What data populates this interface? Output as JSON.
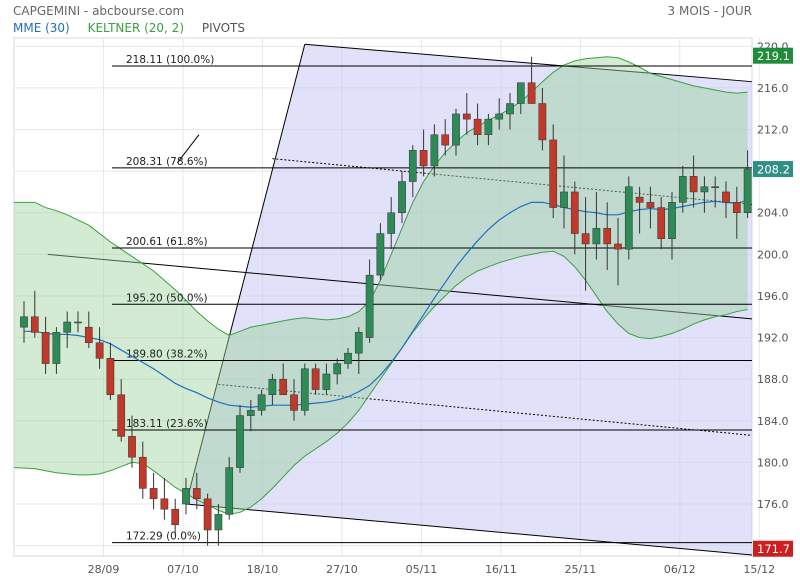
{
  "header": {
    "title": "CAPGEMINI - abcbourse.com",
    "period": "3 MOIS - JOUR"
  },
  "legend": [
    {
      "label": "MME (30)",
      "color": "#1e6fc0"
    },
    {
      "label": "KELTNER (20, 2)",
      "color": "#3aa040"
    },
    {
      "label": "PIVOTS",
      "color": "#555555"
    }
  ],
  "chart_data": {
    "type": "candlestick",
    "ylim": [
      171,
      220.8
    ],
    "y_ticks": [
      "220.0",
      "216.0",
      "212.0",
      "208.0",
      "204.0",
      "200.0",
      "196.0",
      "192.0",
      "188.0",
      "184.0",
      "180.0",
      "176.0",
      "172.0"
    ],
    "x_ticks": [
      "28/09",
      "07/10",
      "18/10",
      "27/10",
      "05/11",
      "16/11",
      "25/11",
      "06/12",
      "15/12"
    ],
    "x_tick_index": [
      4,
      8,
      12,
      16,
      20,
      24,
      28,
      33,
      37
    ],
    "fib_levels": [
      {
        "label": "218.11 (100.0%)",
        "value": 218.11
      },
      {
        "label": "208.31 (78.6%)",
        "value": 208.31
      },
      {
        "label": "200.61 (61.8%)",
        "value": 200.61
      },
      {
        "label": "195.20 (50.0%)",
        "value": 195.2
      },
      {
        "label": "189.80 (38.2%)",
        "value": 189.8
      },
      {
        "label": "183.11 (23.6%)",
        "value": 183.11
      },
      {
        "label": "172.29 (0.0%)",
        "value": 172.29
      }
    ],
    "price_badges": [
      {
        "label": "219.1",
        "value": 219.1,
        "color": "#1e8c3a"
      },
      {
        "label": "208.2",
        "value": 208.2,
        "color": "#2f8f86"
      },
      {
        "label": "171.7",
        "value": 171.7,
        "color": "#cc1f1f"
      }
    ],
    "candles": [
      {
        "o": 193.0,
        "h": 195.5,
        "l": 191.5,
        "c": 194.0
      },
      {
        "o": 194.0,
        "h": 196.5,
        "l": 192.0,
        "c": 192.5
      },
      {
        "o": 192.5,
        "h": 194.0,
        "l": 188.5,
        "c": 189.5
      },
      {
        "o": 189.5,
        "h": 193.0,
        "l": 188.5,
        "c": 192.5
      },
      {
        "o": 192.5,
        "h": 194.5,
        "l": 191.0,
        "c": 193.5
      },
      {
        "o": 193.5,
        "h": 194.5,
        "l": 192.5,
        "c": 193.5
      },
      {
        "o": 193.0,
        "h": 194.5,
        "l": 191.0,
        "c": 191.5
      },
      {
        "o": 191.5,
        "h": 193.0,
        "l": 189.0,
        "c": 190.0
      },
      {
        "o": 190.0,
        "h": 191.5,
        "l": 186.0,
        "c": 186.5
      },
      {
        "o": 186.5,
        "h": 188.0,
        "l": 182.0,
        "c": 182.5
      },
      {
        "o": 182.5,
        "h": 184.5,
        "l": 179.5,
        "c": 180.5
      },
      {
        "o": 180.5,
        "h": 182.0,
        "l": 176.5,
        "c": 177.5
      },
      {
        "o": 177.5,
        "h": 179.0,
        "l": 175.5,
        "c": 176.5
      },
      {
        "o": 176.5,
        "h": 178.5,
        "l": 174.5,
        "c": 175.5
      },
      {
        "o": 175.5,
        "h": 176.5,
        "l": 173.0,
        "c": 174.0
      },
      {
        "o": 176.0,
        "h": 178.5,
        "l": 175.0,
        "c": 177.5
      },
      {
        "o": 177.5,
        "h": 179.0,
        "l": 175.5,
        "c": 176.5
      },
      {
        "o": 176.5,
        "h": 177.0,
        "l": 172.0,
        "c": 173.5
      },
      {
        "o": 173.5,
        "h": 176.0,
        "l": 172.0,
        "c": 175.0
      },
      {
        "o": 175.0,
        "h": 180.5,
        "l": 174.5,
        "c": 179.5
      },
      {
        "o": 179.5,
        "h": 185.5,
        "l": 179.0,
        "c": 184.5
      },
      {
        "o": 184.5,
        "h": 186.0,
        "l": 183.0,
        "c": 185.0
      },
      {
        "o": 185.0,
        "h": 187.0,
        "l": 184.5,
        "c": 186.5
      },
      {
        "o": 186.5,
        "h": 188.5,
        "l": 185.5,
        "c": 188.0
      },
      {
        "o": 188.0,
        "h": 189.5,
        "l": 186.5,
        "c": 186.5
      },
      {
        "o": 186.5,
        "h": 188.0,
        "l": 184.0,
        "c": 185.0
      },
      {
        "o": 185.0,
        "h": 189.5,
        "l": 184.5,
        "c": 189.0
      },
      {
        "o": 189.0,
        "h": 189.5,
        "l": 186.5,
        "c": 187.0
      },
      {
        "o": 187.0,
        "h": 189.5,
        "l": 186.5,
        "c": 188.5
      },
      {
        "o": 188.5,
        "h": 190.0,
        "l": 187.5,
        "c": 189.5
      },
      {
        "o": 189.5,
        "h": 191.0,
        "l": 189.0,
        "c": 190.5
      },
      {
        "o": 190.5,
        "h": 193.0,
        "l": 188.5,
        "c": 192.5
      },
      {
        "o": 192.0,
        "h": 199.5,
        "l": 191.5,
        "c": 198.0
      },
      {
        "o": 198.0,
        "h": 203.0,
        "l": 197.5,
        "c": 202.0
      },
      {
        "o": 202.0,
        "h": 205.5,
        "l": 200.5,
        "c": 204.0
      },
      {
        "o": 204.0,
        "h": 208.0,
        "l": 203.0,
        "c": 207.0
      },
      {
        "o": 207.0,
        "h": 210.5,
        "l": 205.5,
        "c": 210.0
      },
      {
        "o": 210.0,
        "h": 212.0,
        "l": 207.5,
        "c": 208.5
      },
      {
        "o": 208.5,
        "h": 212.5,
        "l": 207.5,
        "c": 211.5
      },
      {
        "o": 211.5,
        "h": 213.0,
        "l": 209.5,
        "c": 210.5
      },
      {
        "o": 210.5,
        "h": 214.0,
        "l": 209.5,
        "c": 213.5
      },
      {
        "o": 213.5,
        "h": 215.5,
        "l": 211.5,
        "c": 213.0
      },
      {
        "o": 213.0,
        "h": 214.5,
        "l": 210.5,
        "c": 211.5
      },
      {
        "o": 211.5,
        "h": 213.5,
        "l": 210.5,
        "c": 213.0
      },
      {
        "o": 213.0,
        "h": 215.0,
        "l": 212.0,
        "c": 213.5
      },
      {
        "o": 213.5,
        "h": 215.5,
        "l": 212.0,
        "c": 214.5
      },
      {
        "o": 214.5,
        "h": 216.5,
        "l": 213.5,
        "c": 216.5
      },
      {
        "o": 216.5,
        "h": 219.0,
        "l": 214.5,
        "c": 214.5
      },
      {
        "o": 214.5,
        "h": 216.0,
        "l": 210.0,
        "c": 211.0
      },
      {
        "o": 211.0,
        "h": 212.5,
        "l": 203.5,
        "c": 204.5
      },
      {
        "o": 204.5,
        "h": 209.5,
        "l": 202.5,
        "c": 206.0
      },
      {
        "o": 206.0,
        "h": 207.0,
        "l": 200.0,
        "c": 202.0
      },
      {
        "o": 202.0,
        "h": 205.5,
        "l": 196.5,
        "c": 201.0
      },
      {
        "o": 201.0,
        "h": 206.0,
        "l": 199.5,
        "c": 202.5
      },
      {
        "o": 202.5,
        "h": 205.0,
        "l": 198.5,
        "c": 201.0
      },
      {
        "o": 201.0,
        "h": 203.5,
        "l": 197.0,
        "c": 200.5
      },
      {
        "o": 200.5,
        "h": 207.5,
        "l": 199.5,
        "c": 206.5
      },
      {
        "o": 205.5,
        "h": 206.5,
        "l": 202.0,
        "c": 205.0
      },
      {
        "o": 205.0,
        "h": 206.5,
        "l": 202.5,
        "c": 204.5
      },
      {
        "o": 204.5,
        "h": 205.5,
        "l": 200.5,
        "c": 201.5
      },
      {
        "o": 201.5,
        "h": 206.0,
        "l": 199.5,
        "c": 205.0
      },
      {
        "o": 205.0,
        "h": 208.5,
        "l": 204.0,
        "c": 207.5
      },
      {
        "o": 207.5,
        "h": 209.5,
        "l": 204.5,
        "c": 206.0
      },
      {
        "o": 206.0,
        "h": 207.5,
        "l": 204.0,
        "c": 206.5
      },
      {
        "o": 206.5,
        "h": 207.5,
        "l": 204.5,
        "c": 206.5
      },
      {
        "o": 206.0,
        "h": 207.0,
        "l": 203.5,
        "c": 205.0
      },
      {
        "o": 205.0,
        "h": 206.5,
        "l": 201.5,
        "c": 204.0
      },
      {
        "o": 204.0,
        "h": 210.0,
        "l": 203.5,
        "c": 208.2
      }
    ],
    "mme_30": [
      192.6,
      192.6,
      192.4,
      192.3,
      192.3,
      192.2,
      192.0,
      191.8,
      191.4,
      190.8,
      190.2,
      189.6,
      189.0,
      188.3,
      187.6,
      187.1,
      186.7,
      186.2,
      185.8,
      185.5,
      185.4,
      185.3,
      185.4,
      185.5,
      185.5,
      185.5,
      185.6,
      185.7,
      185.8,
      186.0,
      186.3,
      186.8,
      187.4,
      188.4,
      189.6,
      191.0,
      192.6,
      194.2,
      195.8,
      197.3,
      198.8,
      200.1,
      201.3,
      202.4,
      203.3,
      204.0,
      204.6,
      205.0,
      205.0,
      204.8,
      204.5,
      204.3,
      204.1,
      204.0,
      203.8,
      203.8,
      204.1,
      204.3,
      204.4,
      204.3,
      204.4,
      204.6,
      204.8,
      205.0,
      205.1,
      205.0,
      204.9,
      205.2
    ],
    "keltner_upper": [
      205.0,
      205.0,
      204.5,
      204.2,
      203.8,
      203.3,
      202.8,
      202.0,
      201.2,
      200.5,
      199.8,
      199.1,
      198.4,
      197.5,
      196.6,
      195.6,
      194.5,
      193.6,
      192.8,
      192.2,
      192.6,
      193.0,
      193.2,
      193.4,
      193.6,
      193.8,
      193.9,
      193.8,
      193.7,
      193.8,
      194.0,
      194.5,
      195.5,
      197.5,
      200.0,
      202.5,
      205.0,
      207.0,
      208.5,
      209.8,
      210.8,
      211.7,
      212.3,
      212.9,
      213.4,
      214.0,
      214.7,
      215.6,
      216.6,
      217.5,
      218.2,
      218.6,
      218.8,
      218.9,
      219.0,
      218.9,
      218.5,
      218.0,
      217.4,
      217.1,
      216.8,
      216.5,
      216.2,
      216.0,
      215.8,
      215.6,
      215.5,
      215.6
    ],
    "keltner_lower": [
      179.5,
      179.4,
      179.2,
      179.0,
      178.9,
      178.8,
      178.8,
      178.9,
      179.2,
      179.6,
      180.0,
      179.9,
      179.2,
      178.4,
      177.6,
      177.0,
      176.4,
      175.9,
      175.4,
      175.0,
      175.2,
      175.7,
      176.5,
      177.5,
      178.6,
      179.7,
      180.6,
      181.3,
      182.0,
      182.8,
      183.8,
      185.0,
      186.5,
      188.0,
      189.5,
      191.0,
      192.5,
      193.8,
      195.0,
      196.0,
      197.0,
      197.8,
      198.4,
      198.8,
      199.2,
      199.5,
      199.8,
      200.0,
      200.2,
      200.3,
      199.8,
      198.8,
      197.5,
      196.0,
      194.5,
      193.3,
      192.4,
      192.0,
      191.9,
      192.1,
      192.4,
      192.8,
      193.3,
      193.7,
      194.0,
      194.2,
      194.5,
      194.7
    ]
  }
}
